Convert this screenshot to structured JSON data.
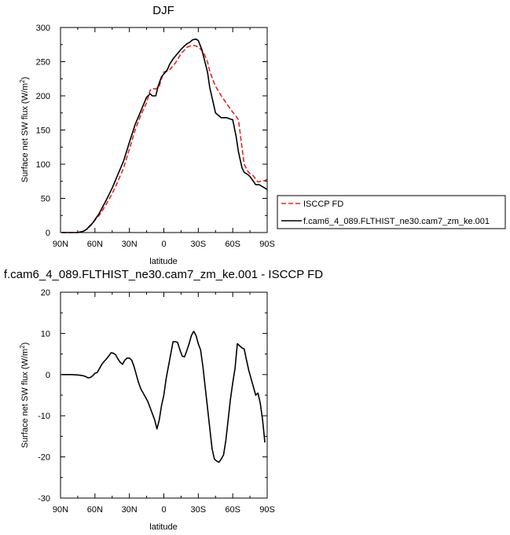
{
  "chart_data": [
    {
      "type": "line",
      "title": "DJF",
      "xlabel": "latitude",
      "ylabel": "Surface net SW flux (W/m",
      "ylabel_sup": "2",
      "ylabel_close": ")",
      "xlim": [
        -90,
        90
      ],
      "ylim": [
        0,
        300
      ],
      "xticks": [
        -90,
        -60,
        -30,
        0,
        30,
        60,
        90
      ],
      "xtick_labels": [
        "90N",
        "60N",
        "30N",
        "0",
        "30S",
        "60S",
        "90S"
      ],
      "yticks": [
        0,
        50,
        100,
        150,
        200,
        250,
        300
      ],
      "ytick_labels": [
        "0",
        "50",
        "100",
        "150",
        "200",
        "250",
        "300"
      ],
      "grid": false,
      "legend_position": "right",
      "series": [
        {
          "name": "ISCCP FD",
          "color": "#e8251f",
          "dash": "dashed",
          "x": [
            -89,
            -85,
            -80,
            -75,
            -70,
            -67,
            -65,
            -62,
            -60,
            -57,
            -55,
            -50,
            -45,
            -40,
            -35,
            -30,
            -25,
            -20,
            -15,
            -12,
            -10,
            -7,
            -4,
            -2,
            0,
            3,
            5,
            8,
            10,
            13,
            15,
            18,
            20,
            23,
            25,
            28,
            30,
            33,
            35,
            38,
            40,
            43,
            45,
            50,
            55,
            60,
            63,
            65,
            68,
            70,
            73,
            75,
            78,
            80,
            82,
            85,
            88,
            90
          ],
          "y": [
            0,
            0,
            0,
            0,
            2,
            5,
            8,
            13,
            18,
            24,
            28,
            42,
            57,
            75,
            95,
            122,
            150,
            172,
            190,
            208,
            211,
            210,
            214,
            225,
            235,
            236,
            238,
            244,
            248,
            256,
            262,
            267,
            271,
            273,
            274,
            273,
            271,
            267,
            262,
            250,
            236,
            222,
            214,
            200,
            188,
            176,
            170,
            165,
            125,
            100,
            90,
            86,
            83,
            78,
            74,
            75,
            76,
            78
          ]
        },
        {
          "name": "f.cam6_4_089.FLTHIST_ne30.cam7_zm_ke.001",
          "color": "#000000",
          "dash": "solid",
          "x": [
            -89,
            -85,
            -80,
            -75,
            -70,
            -67,
            -65,
            -62,
            -60,
            -57,
            -55,
            -50,
            -45,
            -40,
            -35,
            -30,
            -25,
            -20,
            -15,
            -12,
            -10,
            -7,
            -5,
            -2,
            0,
            3,
            5,
            8,
            10,
            13,
            15,
            18,
            20,
            23,
            25,
            28,
            30,
            33,
            35,
            38,
            40,
            43,
            45,
            50,
            55,
            58,
            60,
            63,
            65,
            68,
            70,
            73,
            75,
            78,
            80,
            83,
            85,
            88,
            90
          ],
          "y": [
            0,
            0,
            0,
            0,
            2,
            5,
            9,
            14,
            19,
            26,
            32,
            48,
            65,
            85,
            105,
            132,
            158,
            178,
            198,
            203,
            200,
            200,
            214,
            228,
            232,
            238,
            246,
            254,
            258,
            264,
            268,
            273,
            276,
            279,
            282,
            283,
            281,
            268,
            255,
            235,
            212,
            190,
            175,
            168,
            168,
            166,
            165,
            140,
            118,
            95,
            88,
            85,
            82,
            75,
            70,
            70,
            68,
            65,
            63
          ]
        }
      ]
    },
    {
      "type": "line",
      "title": "f.cam6_4_089.FLTHIST_ne30.cam7_zm_ke.001 - ISCCP FD",
      "xlabel": "latitude",
      "ylabel": "Surface net SW flux (W/m",
      "ylabel_sup": "2",
      "ylabel_close": ")",
      "xlim": [
        -90,
        90
      ],
      "ylim": [
        -30,
        20
      ],
      "xticks": [
        -90,
        -60,
        -30,
        0,
        30,
        60,
        90
      ],
      "xtick_labels": [
        "90N",
        "60N",
        "30N",
        "0",
        "30S",
        "60S",
        "90S"
      ],
      "yticks": [
        -30,
        -20,
        -10,
        0,
        10,
        20
      ],
      "ytick_labels": [
        "-30",
        "-20",
        "-10",
        "0",
        "10",
        "20"
      ],
      "grid": false,
      "series": [
        {
          "color": "#000000",
          "dash": "solid",
          "x": [
            -89,
            -80,
            -75,
            -72,
            -70,
            -68,
            -66,
            -64,
            -62,
            -60,
            -58,
            -56,
            -54,
            -52,
            -50,
            -48,
            -46,
            -44,
            -42,
            -40,
            -38,
            -36,
            -34,
            -32,
            -30,
            -28,
            -26,
            -24,
            -22,
            -20,
            -18,
            -16,
            -14,
            -12,
            -10,
            -8,
            -6,
            -4,
            -2,
            0,
            2,
            4,
            6,
            8,
            10,
            12,
            14,
            16,
            18,
            20,
            22,
            24,
            26,
            28,
            30,
            32,
            34,
            36,
            38,
            40,
            42,
            44,
            46,
            48,
            50,
            52,
            54,
            56,
            58,
            60,
            62,
            64,
            66,
            68,
            70,
            72,
            74,
            76,
            78,
            80,
            82,
            84,
            86,
            88
          ],
          "y": [
            0,
            0,
            -0.1,
            -0.2,
            -0.3,
            -0.5,
            -0.8,
            -0.7,
            -0.3,
            0.3,
            0.5,
            1.5,
            2.5,
            3.2,
            3.8,
            4.5,
            5.3,
            5.2,
            4.8,
            3.8,
            3,
            2.5,
            3.5,
            4,
            4,
            3.5,
            2,
            0,
            -2,
            -3.5,
            -4.5,
            -5.5,
            -6.5,
            -8,
            -9.5,
            -11,
            -13.2,
            -11,
            -7.5,
            -5,
            -1,
            2,
            5,
            8,
            8,
            7.8,
            6,
            4.5,
            4.3,
            5.8,
            7.5,
            9.5,
            10.5,
            9.5,
            7.5,
            6,
            2,
            -3,
            -8,
            -13,
            -18,
            -20.5,
            -21,
            -21.3,
            -20.5,
            -19.5,
            -16,
            -11,
            -6,
            -2,
            1.5,
            7.5,
            7,
            6.5,
            6.2,
            3.5,
            1,
            -1,
            -3,
            -5,
            -4.5,
            -7,
            -11,
            -16.5
          ]
        }
      ]
    }
  ]
}
